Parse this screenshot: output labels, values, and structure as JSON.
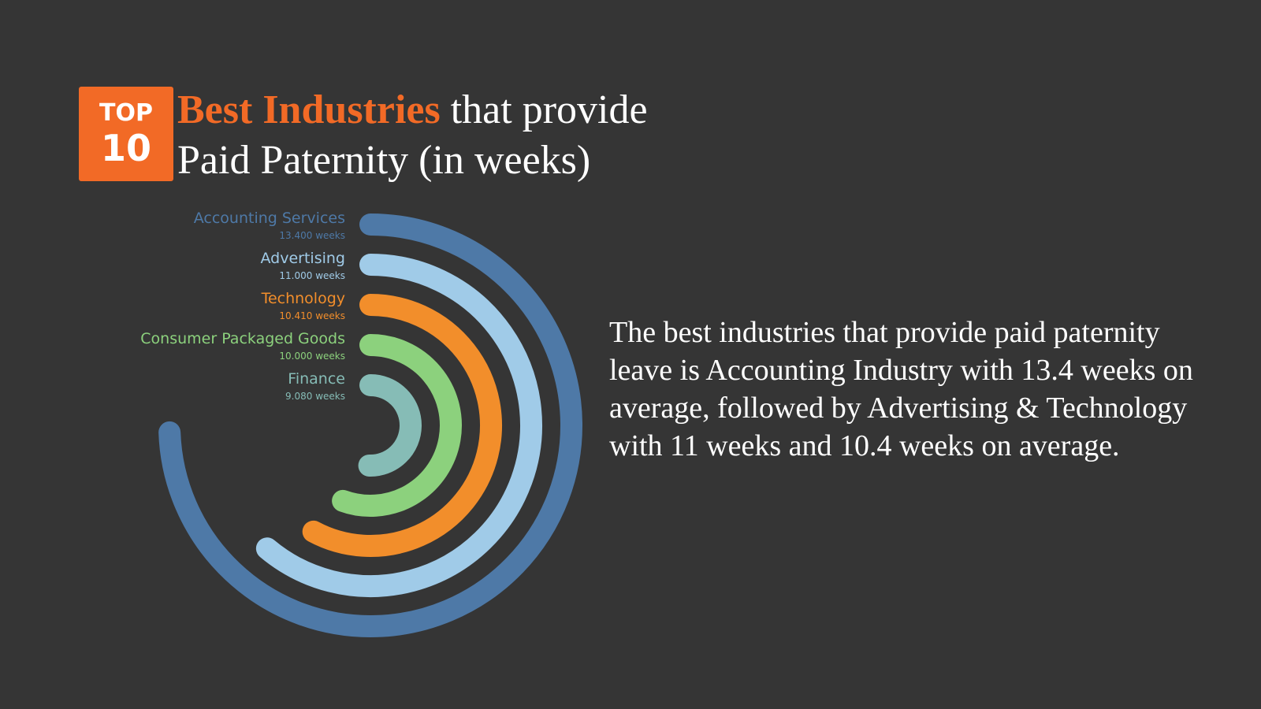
{
  "badge": {
    "line1": "TOP",
    "line2": "10"
  },
  "title": {
    "highlight": "Best Industries",
    "line1_rest": " that provide",
    "line2": "Paid Paternity (in weeks)"
  },
  "description": "The best industries that provide paid paternity leave is Accounting Industry with 13.4 weeks on average, followed by Advertising & Technology with 11 weeks and 10.4 weeks on average.",
  "chart_data": {
    "type": "radial-bar",
    "unit": "weeks",
    "categories": [
      "Accounting Services",
      "Advertising",
      "Technology",
      "Consumer Packaged Goods",
      "Finance"
    ],
    "values": [
      13.4,
      11.0,
      10.41,
      10.0,
      9.08
    ],
    "value_labels": [
      "13.400 weeks",
      "11.000 weeks",
      "10.410 weeks",
      "10.000 weeks",
      "9.080 weeks"
    ],
    "colors": [
      "#4E79A7",
      "#A0CBE8",
      "#F28E2B",
      "#8CD17D",
      "#86BCB6"
    ]
  }
}
